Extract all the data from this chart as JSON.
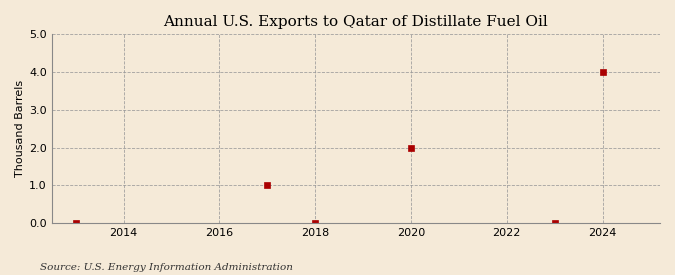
{
  "title": "Annual U.S. Exports to Qatar of Distillate Fuel Oil",
  "ylabel": "Thousand Barrels",
  "source": "Source: U.S. Energy Information Administration",
  "background_color": "#f5ead8",
  "data_points": [
    [
      2013,
      0
    ],
    [
      2017,
      1
    ],
    [
      2018,
      0
    ],
    [
      2020,
      2
    ],
    [
      2023,
      0
    ],
    [
      2024,
      4
    ]
  ],
  "marker_color": "#aa0000",
  "marker_size": 4,
  "xlim": [
    2012.5,
    2025.2
  ],
  "ylim": [
    0.0,
    5.0
  ],
  "xticks": [
    2014,
    2016,
    2018,
    2020,
    2022,
    2024
  ],
  "yticks": [
    0.0,
    1.0,
    2.0,
    3.0,
    4.0,
    5.0
  ],
  "grid_color": "#999999",
  "grid_style": "--",
  "title_fontsize": 11,
  "label_fontsize": 8,
  "tick_fontsize": 8,
  "source_fontsize": 7.5
}
